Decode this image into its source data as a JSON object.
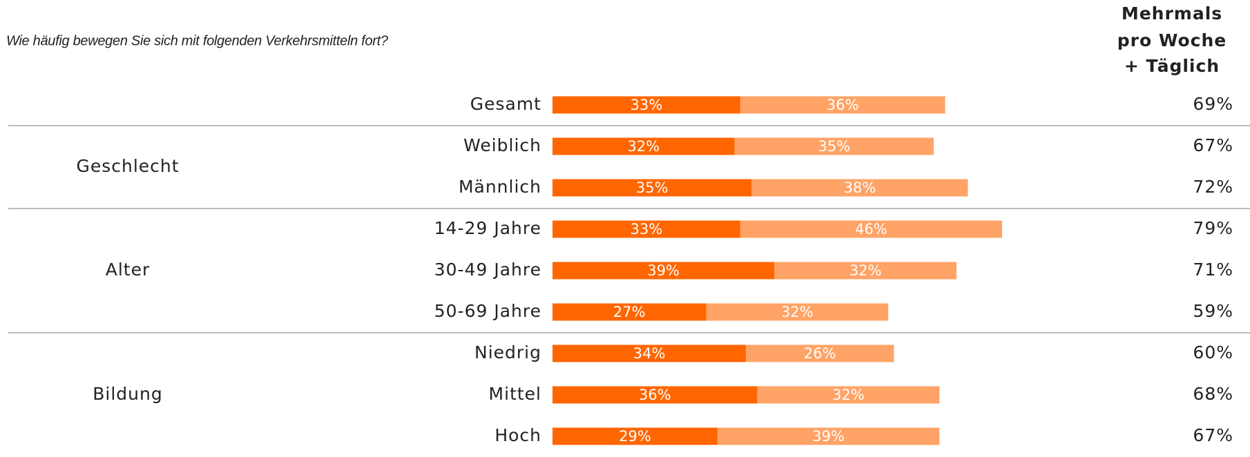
{
  "chart_data": {
    "type": "stacked-bar-horizontal",
    "title": "Wie häufig bewegen Sie sich mit folgenden Verkehrsmitteln fort?",
    "total_header": [
      "Mehrmals",
      "pro Woche",
      "+ Täglich"
    ],
    "categories": [
      "Gesamt",
      "Weiblich",
      "Männlich",
      "14-29 Jahre",
      "30-49 Jahre",
      "50-69 Jahre",
      "Niedrig",
      "Mittel",
      "Hoch"
    ],
    "row_groups": [
      null,
      "Geschlecht",
      "Geschlecht",
      "Alter",
      "Alter",
      "Alter",
      "Bildung",
      "Bildung",
      "Bildung"
    ],
    "xlim": [
      0,
      100
    ],
    "series": [
      {
        "color": "#ff6600",
        "values": [
          33,
          32,
          35,
          33,
          39,
          27,
          34,
          36,
          29
        ],
        "value_labels": [
          "33%",
          "32%",
          "35%",
          "33%",
          "39%",
          "27%",
          "34%",
          "36%",
          "29%"
        ]
      },
      {
        "color": "#ffa366",
        "values": [
          36,
          35,
          38,
          46,
          32,
          32,
          26,
          32,
          39
        ],
        "value_labels": [
          "36%",
          "35%",
          "38%",
          "46%",
          "32%",
          "32%",
          "26%",
          "32%",
          "39%"
        ]
      }
    ],
    "totals": [
      69,
      67,
      72,
      79,
      71,
      59,
      60,
      68,
      67
    ],
    "total_labels": [
      "69%",
      "67%",
      "72%",
      "79%",
      "71%",
      "59%",
      "60%",
      "68%",
      "67%"
    ]
  }
}
